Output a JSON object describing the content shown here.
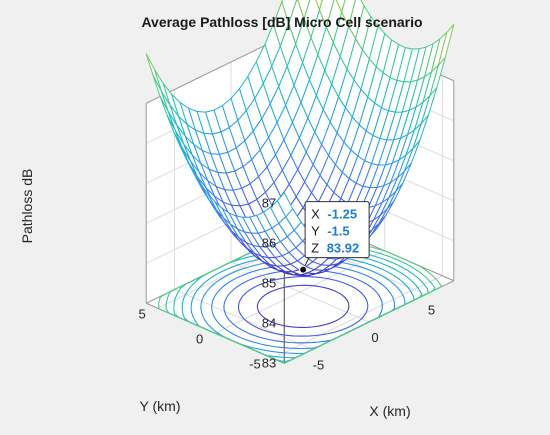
{
  "chart_data": {
    "type": "surface-mesh-with-contour",
    "title": "Average Pathloss [dB] Micro Cell scenario",
    "xlabel": "X (km)",
    "ylabel": "Y (km)",
    "zlabel": "Pathloss dB",
    "xlim": [
      -7.5,
      7.5
    ],
    "ylim": [
      -6,
      6
    ],
    "zlim": [
      83,
      88
    ],
    "xticks": [
      -5,
      0,
      5
    ],
    "yticks": [
      -5,
      0,
      5
    ],
    "zticks": [
      83,
      84,
      85,
      86,
      87
    ],
    "grid": true,
    "colormap": "parula",
    "surface": {
      "model": "z = z0 + a*(x - x0)^2 + b*(y - y0)^2",
      "x0": -1.25,
      "y0": -1.5,
      "z0": 83.92,
      "x_range": [
        -7.5,
        7.5
      ],
      "y_range": [
        -6,
        6
      ],
      "grid_size": [
        21,
        21
      ]
    },
    "datatip": {
      "x_label": "X",
      "x_value": "-1.25",
      "y_label": "Y",
      "y_value": "-1.5",
      "z_label": "Z",
      "z_value": "83.92"
    }
  },
  "colors": {
    "background": "#f0f0f0",
    "axes_face": "#ffffff",
    "grid": "#dcdcdc",
    "datatip_value": "#1f7fd1",
    "colormap_stops": [
      "#3e26a8",
      "#4462f6",
      "#2d96f0",
      "#17b9c9",
      "#3fcb8e",
      "#9bc93b",
      "#e6b92f",
      "#f9e01f"
    ]
  }
}
